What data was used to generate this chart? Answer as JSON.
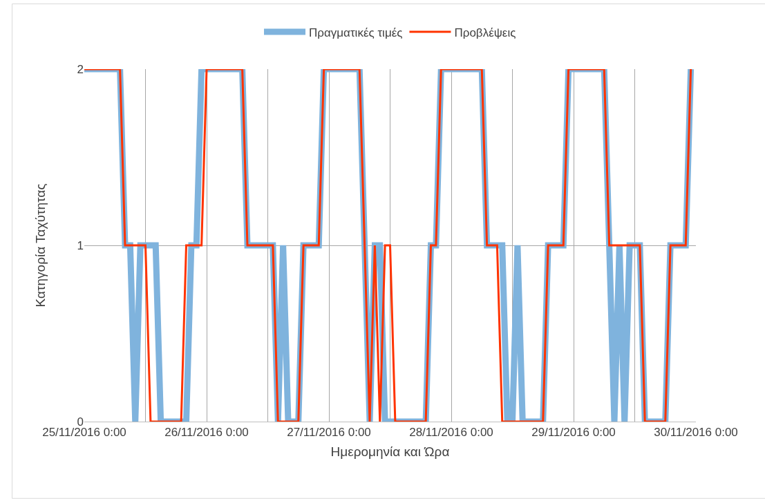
{
  "chart_data": {
    "type": "line",
    "xlabel": "Ημερομηνία και Ώρα",
    "ylabel": "Κατηγορία Ταχύτητας",
    "x": [
      "2016-11-25T00:00",
      "2016-11-25T01:00",
      "2016-11-25T02:00",
      "2016-11-25T03:00",
      "2016-11-25T04:00",
      "2016-11-25T05:00",
      "2016-11-25T06:00",
      "2016-11-25T07:00",
      "2016-11-25T08:00",
      "2016-11-25T09:00",
      "2016-11-25T10:00",
      "2016-11-25T11:00",
      "2016-11-25T12:00",
      "2016-11-25T13:00",
      "2016-11-25T14:00",
      "2016-11-25T15:00",
      "2016-11-25T16:00",
      "2016-11-25T17:00",
      "2016-11-25T18:00",
      "2016-11-25T19:00",
      "2016-11-25T20:00",
      "2016-11-25T21:00",
      "2016-11-25T22:00",
      "2016-11-25T23:00",
      "2016-11-26T00:00",
      "2016-11-26T01:00",
      "2016-11-26T02:00",
      "2016-11-26T03:00",
      "2016-11-26T04:00",
      "2016-11-26T05:00",
      "2016-11-26T06:00",
      "2016-11-26T07:00",
      "2016-11-26T08:00",
      "2016-11-26T09:00",
      "2016-11-26T10:00",
      "2016-11-26T11:00",
      "2016-11-26T12:00",
      "2016-11-26T13:00",
      "2016-11-26T14:00",
      "2016-11-26T15:00",
      "2016-11-26T16:00",
      "2016-11-26T17:00",
      "2016-11-26T18:00",
      "2016-11-26T19:00",
      "2016-11-26T20:00",
      "2016-11-26T21:00",
      "2016-11-26T22:00",
      "2016-11-26T23:00",
      "2016-11-27T00:00",
      "2016-11-27T01:00",
      "2016-11-27T02:00",
      "2016-11-27T03:00",
      "2016-11-27T04:00",
      "2016-11-27T05:00",
      "2016-11-27T06:00",
      "2016-11-27T07:00",
      "2016-11-27T08:00",
      "2016-11-27T09:00",
      "2016-11-27T10:00",
      "2016-11-27T11:00",
      "2016-11-27T12:00",
      "2016-11-27T13:00",
      "2016-11-27T14:00",
      "2016-11-27T15:00",
      "2016-11-27T16:00",
      "2016-11-27T17:00",
      "2016-11-27T18:00",
      "2016-11-27T19:00",
      "2016-11-27T20:00",
      "2016-11-27T21:00",
      "2016-11-27T22:00",
      "2016-11-27T23:00",
      "2016-11-28T00:00",
      "2016-11-28T01:00",
      "2016-11-28T02:00",
      "2016-11-28T03:00",
      "2016-11-28T04:00",
      "2016-11-28T05:00",
      "2016-11-28T06:00",
      "2016-11-28T07:00",
      "2016-11-28T08:00",
      "2016-11-28T09:00",
      "2016-11-28T10:00",
      "2016-11-28T11:00",
      "2016-11-28T12:00",
      "2016-11-28T13:00",
      "2016-11-28T14:00",
      "2016-11-28T15:00",
      "2016-11-28T16:00",
      "2016-11-28T17:00",
      "2016-11-28T18:00",
      "2016-11-28T19:00",
      "2016-11-28T20:00",
      "2016-11-28T21:00",
      "2016-11-28T22:00",
      "2016-11-28T23:00",
      "2016-11-29T00:00",
      "2016-11-29T01:00",
      "2016-11-29T02:00",
      "2016-11-29T03:00",
      "2016-11-29T04:00",
      "2016-11-29T05:00",
      "2016-11-29T06:00",
      "2016-11-29T07:00",
      "2016-11-29T08:00",
      "2016-11-29T09:00",
      "2016-11-29T10:00",
      "2016-11-29T11:00",
      "2016-11-29T12:00",
      "2016-11-29T13:00",
      "2016-11-29T14:00",
      "2016-11-29T15:00",
      "2016-11-29T16:00",
      "2016-11-29T17:00",
      "2016-11-29T18:00",
      "2016-11-29T19:00",
      "2016-11-29T20:00",
      "2016-11-29T21:00",
      "2016-11-29T22:00",
      "2016-11-29T23:00"
    ],
    "series": [
      {
        "name": "Πραγματικές τιμές",
        "color": "#7fb3dd",
        "values": [
          2,
          2,
          2,
          2,
          2,
          2,
          2,
          2,
          1,
          1,
          0,
          1,
          1,
          1,
          1,
          0,
          0,
          0,
          0,
          0,
          0,
          1,
          1,
          2,
          2,
          2,
          2,
          2,
          2,
          2,
          2,
          2,
          1,
          1,
          1,
          1,
          1,
          1,
          0,
          1,
          0,
          0,
          0,
          1,
          1,
          1,
          1,
          2,
          2,
          2,
          2,
          2,
          2,
          2,
          2,
          1,
          0,
          1,
          1,
          0,
          0,
          0,
          0,
          0,
          0,
          0,
          0,
          0,
          1,
          1,
          2,
          2,
          2,
          2,
          2,
          2,
          2,
          2,
          2,
          1,
          1,
          1,
          1,
          0,
          0,
          1,
          0,
          0,
          0,
          0,
          0,
          1,
          1,
          1,
          1,
          2,
          2,
          2,
          2,
          2,
          2,
          2,
          2,
          1,
          0,
          1,
          0,
          1,
          1,
          1,
          0,
          0,
          0,
          0,
          0,
          1,
          1,
          1,
          1,
          2
        ]
      },
      {
        "name": "Προβλέψεις",
        "color": "#ff3300",
        "values": [
          2,
          2,
          2,
          2,
          2,
          2,
          2,
          2,
          1,
          1,
          1,
          1,
          1,
          0,
          0,
          0,
          0,
          0,
          0,
          0,
          1,
          1,
          1,
          1,
          2,
          2,
          2,
          2,
          2,
          2,
          2,
          2,
          1,
          1,
          1,
          1,
          1,
          1,
          0,
          0,
          0,
          0,
          0,
          1,
          1,
          1,
          1,
          2,
          2,
          2,
          2,
          2,
          2,
          2,
          2,
          1,
          0,
          1,
          0,
          1,
          1,
          0,
          0,
          0,
          0,
          0,
          0,
          0,
          1,
          1,
          2,
          2,
          2,
          2,
          2,
          2,
          2,
          2,
          2,
          1,
          1,
          1,
          0,
          0,
          0,
          0,
          0,
          0,
          0,
          0,
          0,
          1,
          1,
          1,
          1,
          2,
          2,
          2,
          2,
          2,
          2,
          2,
          2,
          1,
          1,
          1,
          1,
          1,
          1,
          1,
          0,
          0,
          0,
          0,
          0,
          1,
          1,
          1,
          1,
          2
        ]
      }
    ],
    "xlim": [
      "2016-11-25T00:00",
      "2016-11-30T00:00"
    ],
    "xticks": [
      {
        "value": "2016-11-25T00:00",
        "label": "25/11/2016 0:00"
      },
      {
        "value": "2016-11-25T12:00",
        "label": null
      },
      {
        "value": "2016-11-26T00:00",
        "label": "26/11/2016 0:00"
      },
      {
        "value": "2016-11-26T12:00",
        "label": null
      },
      {
        "value": "2016-11-27T00:00",
        "label": "27/11/2016 0:00"
      },
      {
        "value": "2016-11-27T12:00",
        "label": null
      },
      {
        "value": "2016-11-28T00:00",
        "label": "28/11/2016 0:00"
      },
      {
        "value": "2016-11-28T12:00",
        "label": null
      },
      {
        "value": "2016-11-29T00:00",
        "label": "29/11/2016 0:00"
      },
      {
        "value": "2016-11-29T12:00",
        "label": null
      },
      {
        "value": "2016-11-30T00:00",
        "label": "30/11/2016 0:00"
      }
    ],
    "ylim": [
      0,
      2
    ],
    "yticks": [
      0,
      1,
      2
    ],
    "grid": true,
    "legend": "top",
    "line_style": "solid",
    "marker": "none"
  }
}
